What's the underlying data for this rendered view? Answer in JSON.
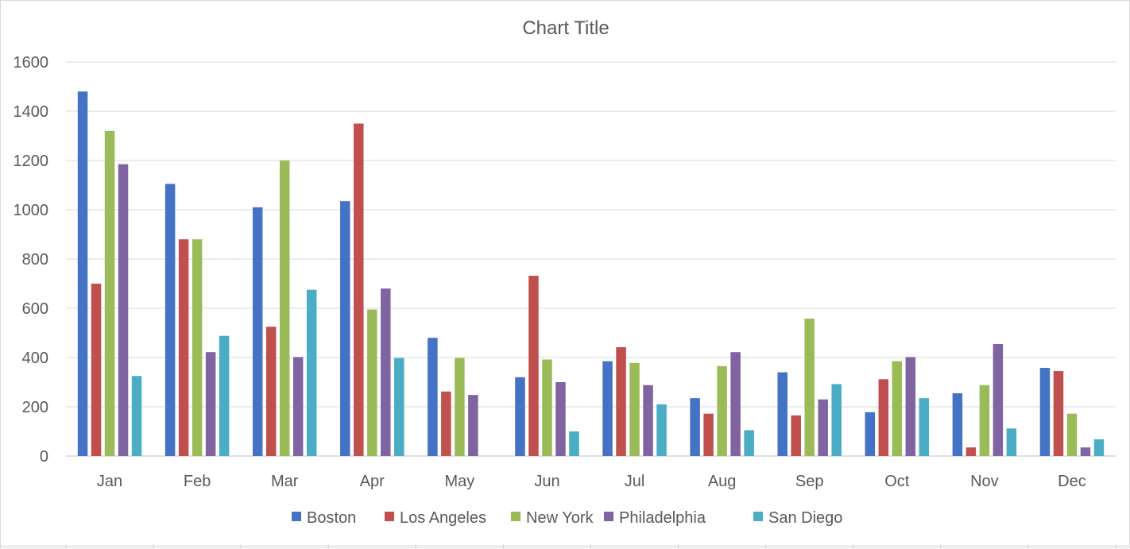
{
  "chart_data": {
    "type": "bar",
    "title": "Chart Title",
    "xlabel": "",
    "ylabel": "",
    "categories": [
      "Jan",
      "Feb",
      "Mar",
      "Apr",
      "May",
      "Jun",
      "Jul",
      "Aug",
      "Sep",
      "Oct",
      "Nov",
      "Dec"
    ],
    "ylim": [
      0,
      1600
    ],
    "yticks": [
      0,
      200,
      400,
      600,
      800,
      1000,
      1200,
      1400,
      1600
    ],
    "grid": true,
    "legend_position": "bottom",
    "series": [
      {
        "name": "Boston",
        "color": "#4472c4",
        "values": [
          1480,
          1105,
          1010,
          1035,
          480,
          320,
          385,
          235,
          340,
          178,
          255,
          358
        ]
      },
      {
        "name": "Los Angeles",
        "color": "#c0504d",
        "values": [
          700,
          880,
          525,
          1350,
          262,
          732,
          442,
          172,
          165,
          312,
          35,
          345
        ]
      },
      {
        "name": "New York",
        "color": "#9bbb59",
        "values": [
          1320,
          880,
          1200,
          595,
          398,
          392,
          378,
          365,
          558,
          385,
          288,
          172
        ]
      },
      {
        "name": "Philadelphia",
        "color": "#8064a2",
        "values": [
          1185,
          422,
          402,
          680,
          248,
          300,
          288,
          422,
          230,
          402,
          455,
          35
        ]
      },
      {
        "name": "San Diego",
        "color": "#4bacc6",
        "values": [
          325,
          488,
          675,
          398,
          0,
          100,
          210,
          105,
          292,
          235,
          112,
          68
        ]
      }
    ]
  }
}
